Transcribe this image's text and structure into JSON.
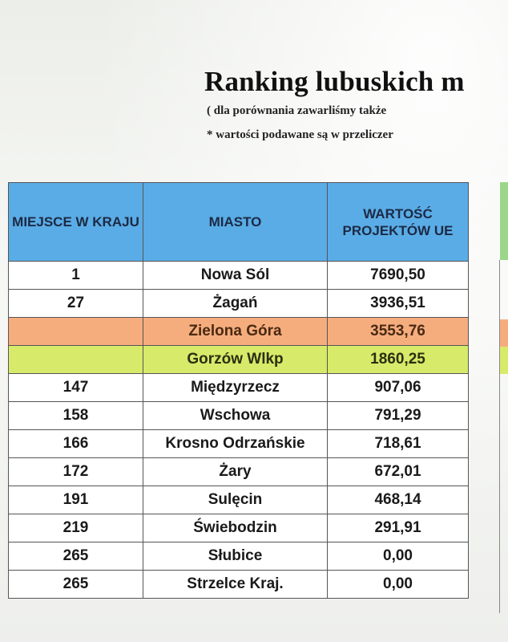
{
  "title": "Ranking lubuskich m",
  "subtitle_1": "( dla porównania zawarliśmy także",
  "subtitle_2": "* wartości podawane są w przeliczer",
  "table": {
    "headers": {
      "rank": "MIEJSCE W KRAJU",
      "city": "MIASTO",
      "value": "WARTOŚĆ PROJEKTÓW UE"
    },
    "rows": [
      {
        "rank": "1",
        "city": "Nowa Sól",
        "value": "7690,50",
        "highlight": "none"
      },
      {
        "rank": "27",
        "city": "Żagań",
        "value": "3936,51",
        "highlight": "none"
      },
      {
        "rank": "",
        "city": "Zielona Góra",
        "value": "3553,76",
        "highlight": "orange"
      },
      {
        "rank": "",
        "city": "Gorzów Wlkp",
        "value": "1860,25",
        "highlight": "yellow"
      },
      {
        "rank": "147",
        "city": "Międzyrzecz",
        "value": "907,06",
        "highlight": "none"
      },
      {
        "rank": "158",
        "city": "Wschowa",
        "value": "791,29",
        "highlight": "none"
      },
      {
        "rank": "166",
        "city": "Krosno Odrzańskie",
        "value": "718,61",
        "highlight": "none"
      },
      {
        "rank": "172",
        "city": "Żary",
        "value": "672,01",
        "highlight": "none"
      },
      {
        "rank": "191",
        "city": "Sulęcin",
        "value": "468,14",
        "highlight": "none"
      },
      {
        "rank": "219",
        "city": "Świebodzin",
        "value": "291,91",
        "highlight": "none"
      },
      {
        "rank": "265",
        "city": "Słubice",
        "value": "0,00",
        "highlight": "none"
      },
      {
        "rank": "265",
        "city": "Strzelce Kraj.",
        "value": "0,00",
        "highlight": "none"
      }
    ]
  },
  "colors": {
    "header": "#5aace6",
    "highlight_orange": "#f6ad7e",
    "highlight_yellow": "#d8ea6a"
  }
}
